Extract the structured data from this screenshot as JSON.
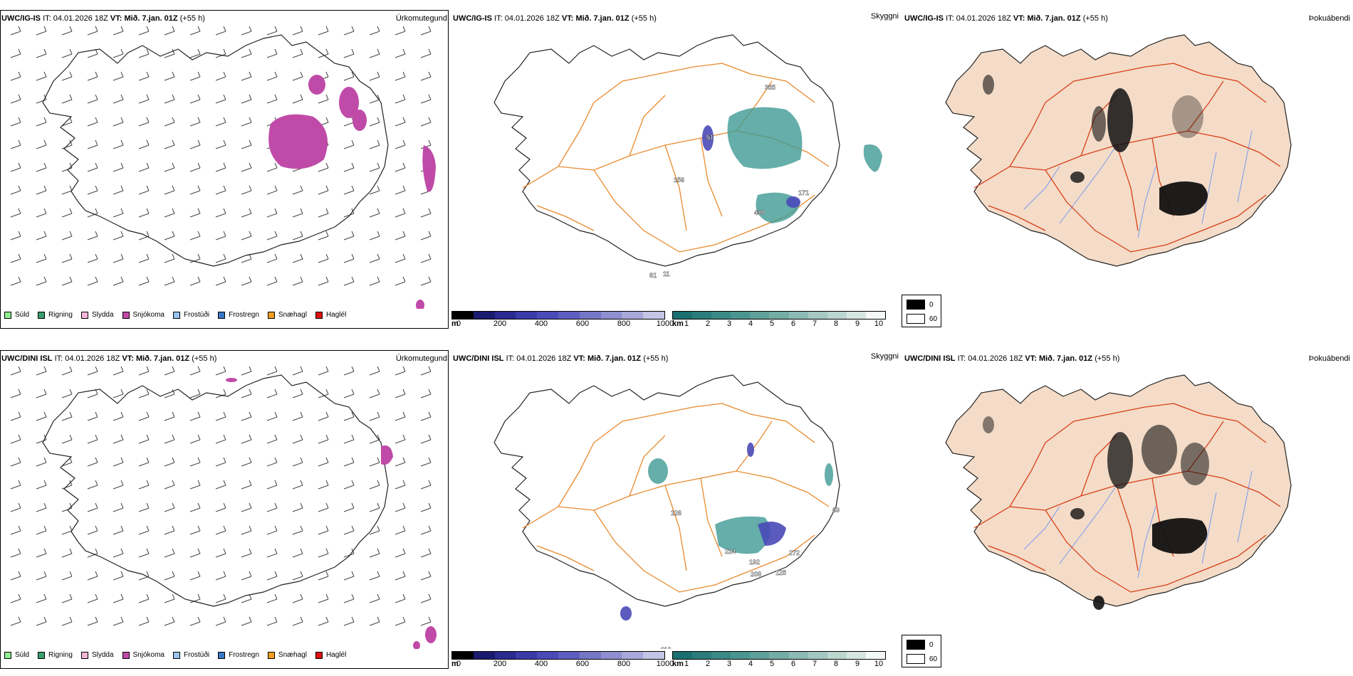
{
  "rows": [
    {
      "model": "UWC/IG-IS",
      "it_label": "IT:",
      "it_value": "04.01.2026 18Z",
      "vt_label": "VT:",
      "vt_value": "Mið. 7.jan. 01Z",
      "lead": "(+55 h)",
      "panel_titles": [
        "Úrkomutegund",
        "Skyggni",
        "Þokuábendi"
      ]
    },
    {
      "model": "UWC/DINI ISL",
      "it_label": "IT:",
      "it_value": "04.01.2026 18Z",
      "vt_label": "VT:",
      "vt_value": "Mið. 7.jan. 01Z",
      "lead": "(+55 h)",
      "panel_titles": [
        "Úrkomutegund",
        "Skyggni",
        "Þokuábendi"
      ]
    }
  ],
  "precip_legend": [
    {
      "label": "Súld",
      "color": "#90ee90"
    },
    {
      "label": "Rigning",
      "color": "#3a9e6e"
    },
    {
      "label": "Slydda",
      "color": "#f4b6d8"
    },
    {
      "label": "Snjókoma",
      "color": "#c04aa8"
    },
    {
      "label": "Frostúði",
      "color": "#9cc4f0"
    },
    {
      "label": "Frostregn",
      "color": "#3a78c8"
    },
    {
      "label": "Snæhagl",
      "color": "#f0a020"
    },
    {
      "label": "Haglél",
      "color": "#e01010"
    }
  ],
  "visibility_bar_m": {
    "unit": "m",
    "ticks": [
      "0",
      "200",
      "400",
      "600",
      "800",
      "1000"
    ],
    "colors": [
      "#000000",
      "#1a1a6e",
      "#2a2a90",
      "#3a3aa8",
      "#4a4ab8",
      "#5e5ec0",
      "#7676c8",
      "#8e8ed0",
      "#a8a8da",
      "#c4c4e6"
    ]
  },
  "visibility_bar_km": {
    "unit": "km",
    "ticks": [
      "1",
      "2",
      "3",
      "4",
      "5",
      "6",
      "7",
      "8",
      "9",
      "10"
    ],
    "colors": [
      "#1a7070",
      "#2a7d7a",
      "#3a8a86",
      "#4a9590",
      "#5ea09a",
      "#74aca6",
      "#8cbab4",
      "#a4c8c2",
      "#bcd6d0",
      "#d8e6e2",
      "#f4f8f6"
    ]
  },
  "fog_legend": [
    {
      "label": "0",
      "color": "#000000"
    },
    {
      "label": "60",
      "color": "#ffffff"
    }
  ],
  "visibility_labels_top": [
    "355",
    "51",
    "156",
    "171",
    "439",
    "61",
    "11"
  ],
  "visibility_labels_bottom": [
    "126",
    "224",
    "192",
    "208",
    "272",
    "125",
    "112",
    "69"
  ],
  "colors": {
    "snow": "#c04aa8",
    "visibility_teal": "#3f9a94",
    "visibility_blue": "#4a4ab8",
    "roads": "#e88a2e",
    "roads_red": "#d8401a",
    "rivers": "#7a9af0",
    "land_fill": "#f4dcc8"
  }
}
